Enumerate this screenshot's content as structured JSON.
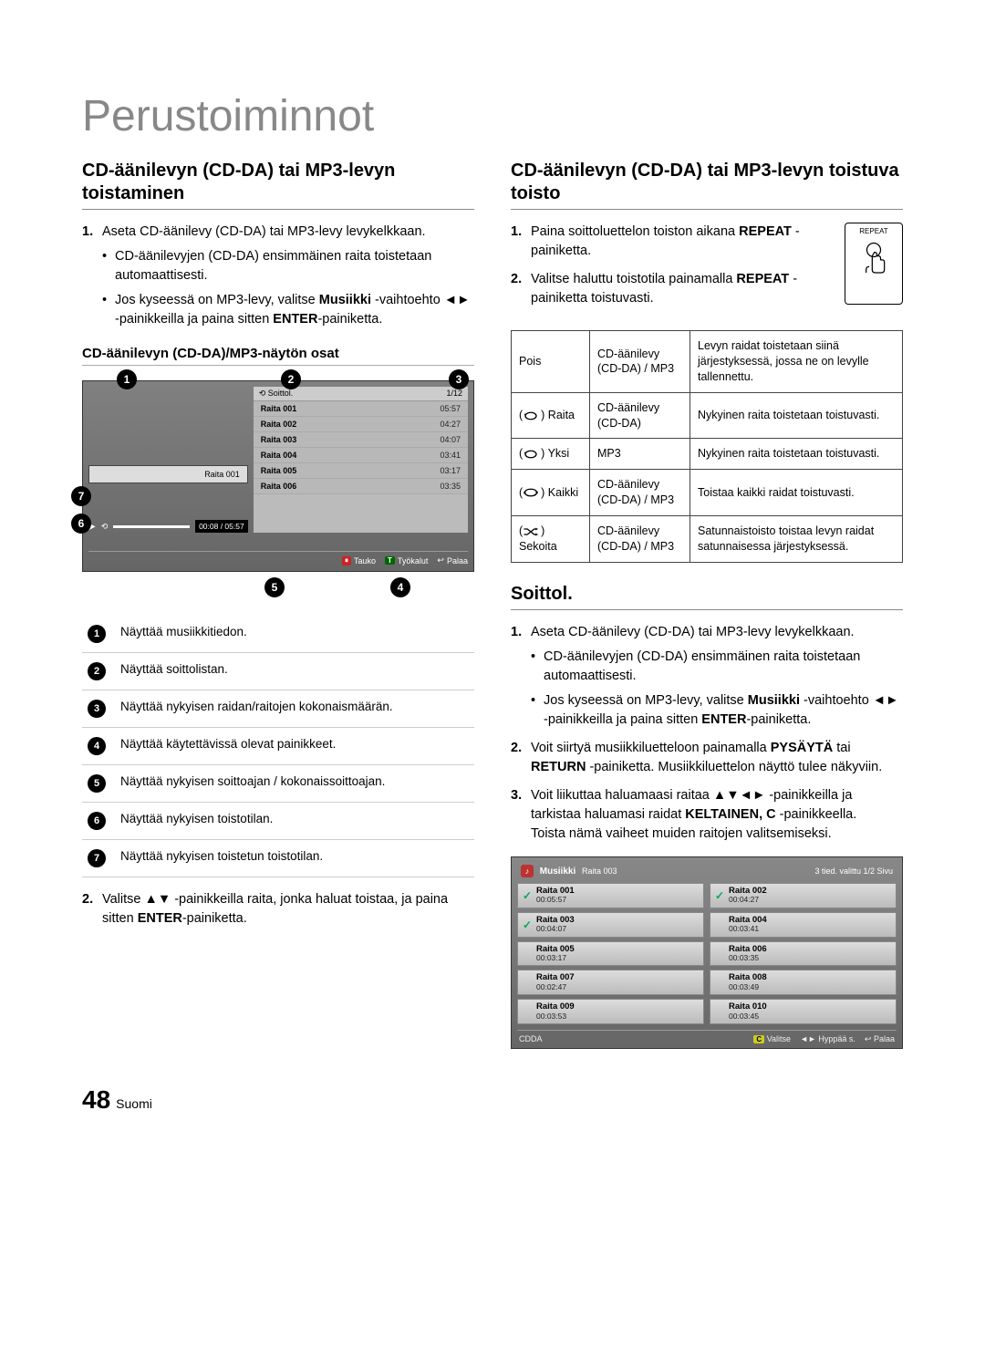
{
  "page": {
    "title": "Perustoiminnot",
    "number": "48",
    "lang_label": "Suomi"
  },
  "colors": {
    "rule": "#888888",
    "screen_bg_top": "#808080",
    "screen_bg_bottom": "#666666",
    "badge_red": "#cc2222",
    "badge_green": "#006600"
  },
  "left": {
    "heading": "CD-äänilevyn (CD-DA) tai MP3-levyn toistaminen",
    "step1_num": "1.",
    "step1_text": "Aseta CD-äänilevy (CD-DA) tai MP3-levy levykelkkaan.",
    "step1_b1": "CD-äänilevyjen (CD-DA) ensimmäinen raita toistetaan automaattisesti.",
    "step1_b2_pre": "Jos kyseessä on MP3-levy, valitse ",
    "step1_b2_bold1": "Musiikki",
    "step1_b2_mid": " -vaihtoehto ◄► -painikkeilla ja paina sitten ",
    "step1_b2_bold2": "ENTER",
    "step1_b2_post": "-painiketta.",
    "subheading": "CD-äänilevyn (CD-DA)/MP3-näytön osat",
    "screen": {
      "soittol_label": "Soittol.",
      "position_label": "1/12",
      "left_track": "Raita 001",
      "time_readout": "00:08 / 05:57",
      "tracks": [
        {
          "name": "Raita 001",
          "time": "05:57"
        },
        {
          "name": "Raita 002",
          "time": "04:27"
        },
        {
          "name": "Raita 003",
          "time": "04:07"
        },
        {
          "name": "Raita 004",
          "time": "03:41"
        },
        {
          "name": "Raita 005",
          "time": "03:17"
        },
        {
          "name": "Raita 006",
          "time": "03:35"
        }
      ],
      "footer": {
        "pause": "Tauko",
        "tools": "Työkalut",
        "back": "Palaa"
      }
    },
    "legend": [
      "Näyttää musiikkitiedon.",
      "Näyttää soittolistan.",
      "Näyttää nykyisen raidan/raitojen kokonaismäärän.",
      "Näyttää käytettävissä olevat painikkeet.",
      "Näyttää nykyisen soittoajan / kokonaissoittoajan.",
      "Näyttää nykyisen toistotilan.",
      "Näyttää nykyisen toistetun toistotilan."
    ],
    "step2_num": "2.",
    "step2_pre": "Valitse ▲▼ -painikkeilla raita, jonka haluat toistaa, ja paina sitten ",
    "step2_bold": "ENTER",
    "step2_post": "-painiketta."
  },
  "right": {
    "heading": "CD-äänilevyn (CD-DA) tai MP3-levyn toistuva toisto",
    "step1_num": "1.",
    "step1_pre": "Paina soittoluettelon toiston aikana ",
    "step1_bold": "REPEAT",
    "step1_post": " -painiketta.",
    "step2_num": "2.",
    "step2_pre": "Valitse haluttu toistotila painamalla ",
    "step2_bold": "REPEAT",
    "step2_post": " -painiketta toistuvasti.",
    "remote_label": "REPEAT",
    "table": {
      "rows": [
        {
          "mode": "Pois",
          "fmt": "CD-äänilevy (CD-DA) / MP3",
          "desc": "Levyn raidat toistetaan siinä järjestyksessä, jossa ne on levylle tallennettu."
        },
        {
          "mode": "Raita",
          "icon": "repeat-one",
          "fmt": "CD-äänilevy (CD-DA)",
          "desc": "Nykyinen raita toistetaan toistuvasti."
        },
        {
          "mode": "Yksi",
          "icon": "repeat-one",
          "fmt": "MP3",
          "desc": "Nykyinen raita toistetaan toistuvasti."
        },
        {
          "mode": "Kaikki",
          "icon": "repeat-all",
          "fmt": "CD-äänilevy (CD-DA) / MP3",
          "desc": "Toistaa kaikki raidat toistuvasti."
        },
        {
          "mode": "Sekoita",
          "icon": "shuffle",
          "fmt": "CD-äänilevy (CD-DA) / MP3",
          "desc": "Satunnaistoisto toistaa levyn raidat satunnaisessa järjestyksessä."
        }
      ]
    },
    "soittol": {
      "heading": "Soittol.",
      "s1_num": "1.",
      "s1_text": "Aseta CD-äänilevy (CD-DA) tai MP3-levy levykelkkaan.",
      "s1_b1": "CD-äänilevyjen (CD-DA) ensimmäinen raita toistetaan automaattisesti.",
      "s1_b2_pre": "Jos kyseessä on MP3-levy, valitse ",
      "s1_b2_bold1": "Musiikki",
      "s1_b2_mid": " -vaihtoehto ◄► -painikkeilla ja paina sitten ",
      "s1_b2_bold2": "ENTER",
      "s1_b2_post": "-painiketta.",
      "s2_num": "2.",
      "s2_pre": "Voit siirtyä musiikkiluetteloon painamalla ",
      "s2_b1": "PYSÄYTÄ",
      "s2_mid1": " tai ",
      "s2_b2": "RETURN",
      "s2_mid2": " -painiketta. Musiikkiluettelon näyttö tulee näkyviin.",
      "s3_num": "3.",
      "s3_pre": "Voit liikuttaa haluamaasi raitaa ▲▼◄► -painikkeilla ja tarkistaa haluamasi raidat ",
      "s3_bold": "KELTAINEN, C",
      "s3_post": " -painikkeella.\nToista nämä vaiheet muiden raitojen valitsemiseksi.",
      "screen": {
        "title_label": "Musiikki",
        "subtitle": "Raita 003",
        "count": "3  tied. valittu   1/2 Sivu",
        "items": [
          {
            "chk": true,
            "name": "Raita 001",
            "time": "00:05:57"
          },
          {
            "chk": true,
            "name": "Raita 002",
            "time": "00:04:27"
          },
          {
            "chk": true,
            "name": "Raita 003",
            "time": "00:04:07"
          },
          {
            "chk": false,
            "name": "Raita 004",
            "time": "00:03:41"
          },
          {
            "chk": false,
            "name": "Raita 005",
            "time": "00:03:17"
          },
          {
            "chk": false,
            "name": "Raita 006",
            "time": "00:03:35"
          },
          {
            "chk": false,
            "name": "Raita 007",
            "time": "00:02:47"
          },
          {
            "chk": false,
            "name": "Raita 008",
            "time": "00:03:49"
          },
          {
            "chk": false,
            "name": "Raita 009",
            "time": "00:03:53"
          },
          {
            "chk": false,
            "name": "Raita 010",
            "time": "00:03:45"
          }
        ],
        "footer_left": "CDDA",
        "footer_select": "Valitse",
        "footer_jump": "Hyppää s.",
        "footer_back": "Palaa"
      }
    }
  }
}
